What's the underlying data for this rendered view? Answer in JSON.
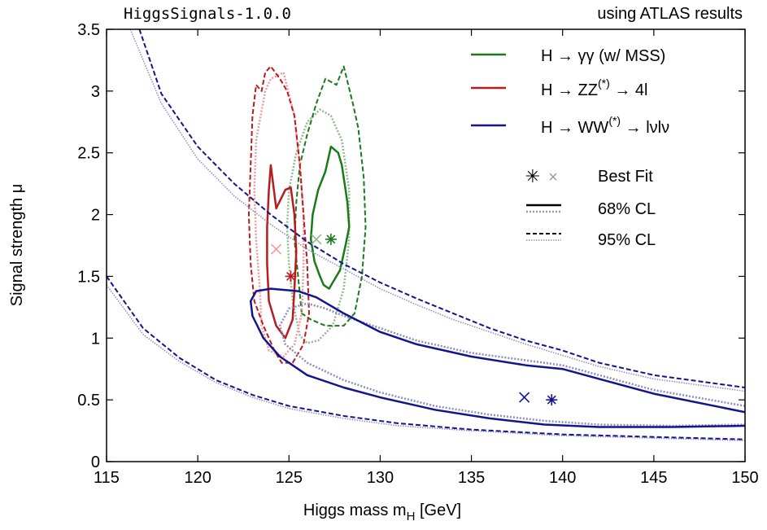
{
  "header": {
    "program": "HiggsSignals-1.0.0",
    "source": "using ATLAS results"
  },
  "colors": {
    "gamma": "#1a7a1a",
    "zz": "#b81c1c",
    "ww": "#14148c",
    "gamma_light": "#8fb88f",
    "zz_light": "#f09a9a",
    "ww_light": "#8c8cc4",
    "grey": "#999999"
  },
  "chart_data": {
    "type": "scatter",
    "title": "",
    "xlabel": "Higgs mass m_H [GeV]",
    "xlabel_main": "Higgs mass m",
    "xlabel_sub": "H",
    "xlabel_unit": " [GeV]",
    "ylabel": "Signal strength μ",
    "xlim": [
      115,
      150
    ],
    "ylim": [
      0,
      3.5
    ],
    "xticks": [
      115,
      120,
      125,
      130,
      135,
      140,
      145,
      150
    ],
    "yticks": [
      0,
      0.5,
      1,
      1.5,
      2,
      2.5,
      3,
      3.5
    ],
    "xtick_labels": [
      "115",
      "120",
      "125",
      "130",
      "135",
      "140",
      "145",
      "150"
    ],
    "ytick_labels": [
      "0",
      "0.5",
      "1",
      "1.5",
      "2",
      "2.5",
      "3",
      "3.5"
    ],
    "grid": false,
    "legend_position": "top-right",
    "legend": {
      "channels": [
        {
          "key": "gamma",
          "pre": "H → γγ (w/ MSS)",
          "sup": "",
          "post": ""
        },
        {
          "key": "zz",
          "pre": "H → ZZ",
          "sup": "(*)",
          "post": " → 4l"
        },
        {
          "key": "ww",
          "pre": "H → WW",
          "sup": "(*)",
          "post": " → lνlν"
        }
      ],
      "best_fit": "Best Fit",
      "cl68": "68% CL",
      "cl95": "95% CL"
    },
    "series": [
      {
        "channel": "gamma",
        "best_fit_higgssignals": [
          127.3,
          1.8
        ],
        "best_fit_official": [
          126.5,
          1.8
        ],
        "cl68_higgssignals": [
          [
            126.7,
            1.5
          ],
          [
            126.4,
            1.62
          ],
          [
            126.2,
            1.8
          ],
          [
            126.3,
            2.0
          ],
          [
            126.6,
            2.2
          ],
          [
            127.0,
            2.35
          ],
          [
            127.3,
            2.55
          ],
          [
            127.7,
            2.5
          ],
          [
            127.9,
            2.4
          ],
          [
            128.2,
            2.1
          ],
          [
            128.3,
            1.9
          ],
          [
            128.1,
            1.75
          ],
          [
            127.8,
            1.55
          ],
          [
            127.2,
            1.4
          ],
          [
            126.9,
            1.43
          ]
        ],
        "cl68_official": [
          [
            125.6,
            1.02
          ],
          [
            125.2,
            1.3
          ],
          [
            125.0,
            1.6
          ],
          [
            124.9,
            1.9
          ],
          [
            125.0,
            2.2
          ],
          [
            125.4,
            2.5
          ],
          [
            126.0,
            2.75
          ],
          [
            126.7,
            2.85
          ],
          [
            127.3,
            2.8
          ],
          [
            127.9,
            2.6
          ],
          [
            128.3,
            2.2
          ],
          [
            128.3,
            1.8
          ],
          [
            128.0,
            1.4
          ],
          [
            127.4,
            1.1
          ],
          [
            126.6,
            0.98
          ],
          [
            126.0,
            0.96
          ]
        ],
        "cl95_higgssignals": [
          [
            125.7,
            1.2
          ],
          [
            125.5,
            1.5
          ],
          [
            125.3,
            1.8
          ],
          [
            125.4,
            2.1
          ],
          [
            125.6,
            2.4
          ],
          [
            126.0,
            2.65
          ],
          [
            126.5,
            2.9
          ],
          [
            127.0,
            3.1
          ],
          [
            127.6,
            3.05
          ],
          [
            128.0,
            3.2
          ],
          [
            128.5,
            2.9
          ],
          [
            128.8,
            2.7
          ],
          [
            129.1,
            2.3
          ],
          [
            129.2,
            1.9
          ],
          [
            129.0,
            1.5
          ],
          [
            128.6,
            1.2
          ],
          [
            128.0,
            1.1
          ],
          [
            127.0,
            1.1
          ],
          [
            126.2,
            1.15
          ]
        ],
        "cl95_official": []
      },
      {
        "channel": "zz",
        "best_fit_higgssignals": [
          125.1,
          1.5
        ],
        "best_fit_official": [
          124.3,
          1.72
        ],
        "cl68_higgssignals": [
          [
            124.0,
            2.4
          ],
          [
            124.3,
            2.05
          ],
          [
            124.8,
            2.2
          ],
          [
            125.1,
            2.22
          ],
          [
            125.3,
            2.0
          ],
          [
            125.4,
            1.7
          ],
          [
            125.3,
            1.4
          ],
          [
            125.2,
            1.15
          ],
          [
            124.8,
            1.0
          ],
          [
            124.3,
            1.1
          ],
          [
            123.9,
            1.3
          ],
          [
            123.8,
            1.6
          ],
          [
            123.8,
            1.9
          ],
          [
            123.9,
            2.2
          ]
        ],
        "cl68_official": [
          [
            123.7,
            3.0
          ],
          [
            123.2,
            2.6
          ],
          [
            123.1,
            2.2
          ],
          [
            123.2,
            1.8
          ],
          [
            123.4,
            1.4
          ],
          [
            123.5,
            1.1
          ],
          [
            123.9,
            0.9
          ],
          [
            124.7,
            0.85
          ],
          [
            125.3,
            0.95
          ],
          [
            125.7,
            1.2
          ],
          [
            125.8,
            1.6
          ],
          [
            125.8,
            2.0
          ],
          [
            125.6,
            2.4
          ],
          [
            125.3,
            2.8
          ],
          [
            124.7,
            3.15
          ],
          [
            124.0,
            3.1
          ]
        ],
        "cl95_higgssignals": [
          [
            122.9,
            2.4
          ],
          [
            123.0,
            2.8
          ],
          [
            123.2,
            3.05
          ],
          [
            123.5,
            3.0
          ],
          [
            123.7,
            3.15
          ],
          [
            124.0,
            3.2
          ],
          [
            124.5,
            3.1
          ],
          [
            124.9,
            3.0
          ],
          [
            125.3,
            2.8
          ],
          [
            125.6,
            2.4
          ],
          [
            125.8,
            2.0
          ],
          [
            126.0,
            1.6
          ],
          [
            126.1,
            1.2
          ],
          [
            125.8,
            0.95
          ],
          [
            125.2,
            0.8
          ],
          [
            124.6,
            0.8
          ],
          [
            124.2,
            0.9
          ],
          [
            123.6,
            1.1
          ],
          [
            123.1,
            1.3
          ],
          [
            122.9,
            1.6
          ],
          [
            122.8,
            2.0
          ]
        ],
        "cl95_official": []
      },
      {
        "channel": "ww",
        "best_fit_higgssignals": [
          139.4,
          0.5
        ],
        "best_fit_official": [
          137.9,
          0.52
        ],
        "cl68_higgssignals": [
          [
            150,
            0.4
          ],
          [
            145,
            0.55
          ],
          [
            142,
            0.67
          ],
          [
            140,
            0.75
          ],
          [
            138,
            0.78
          ],
          [
            135,
            0.85
          ],
          [
            132,
            0.95
          ],
          [
            130,
            1.05
          ],
          [
            128,
            1.2
          ],
          [
            126.5,
            1.33
          ],
          [
            125.5,
            1.38
          ],
          [
            124,
            1.4
          ],
          [
            123.2,
            1.38
          ],
          [
            122.9,
            1.3
          ],
          [
            123.0,
            1.18
          ],
          [
            123.6,
            1.0
          ],
          [
            124.5,
            0.85
          ],
          [
            126,
            0.7
          ],
          [
            128,
            0.6
          ],
          [
            130,
            0.52
          ],
          [
            133,
            0.42
          ],
          [
            136,
            0.35
          ],
          [
            139,
            0.3
          ],
          [
            142,
            0.28
          ],
          [
            146,
            0.28
          ],
          [
            150,
            0.29
          ]
        ],
        "cl68_official": [
          [
            150,
            0.45
          ],
          [
            145,
            0.58
          ],
          [
            142,
            0.7
          ],
          [
            140,
            0.78
          ],
          [
            138,
            0.82
          ],
          [
            135,
            0.88
          ],
          [
            132,
            0.98
          ],
          [
            130,
            1.08
          ],
          [
            128,
            1.18
          ],
          [
            127,
            1.24
          ],
          [
            126,
            1.28
          ],
          [
            125,
            1.24
          ],
          [
            124.5,
            1.1
          ],
          [
            124.8,
            0.95
          ],
          [
            126,
            0.8
          ],
          [
            128,
            0.66
          ],
          [
            130,
            0.56
          ],
          [
            133,
            0.45
          ],
          [
            136,
            0.38
          ],
          [
            139,
            0.33
          ],
          [
            142,
            0.3
          ],
          [
            146,
            0.29
          ],
          [
            150,
            0.3
          ]
        ],
        "cl95_higgssignals_upper": [
          [
            116.8,
            3.5
          ],
          [
            118,
            2.98
          ],
          [
            120,
            2.55
          ],
          [
            122,
            2.25
          ],
          [
            124,
            2.0
          ],
          [
            126,
            1.78
          ],
          [
            128,
            1.6
          ],
          [
            130,
            1.45
          ],
          [
            132,
            1.32
          ],
          [
            134,
            1.2
          ],
          [
            136,
            1.08
          ],
          [
            138,
            0.98
          ],
          [
            140,
            0.9
          ],
          [
            142,
            0.8
          ],
          [
            145,
            0.7
          ],
          [
            150,
            0.6
          ]
        ],
        "cl95_higgssignals_lower": [
          [
            115,
            1.5
          ],
          [
            117,
            1.08
          ],
          [
            119,
            0.84
          ],
          [
            121,
            0.66
          ],
          [
            123,
            0.54
          ],
          [
            125,
            0.45
          ],
          [
            128,
            0.37
          ],
          [
            131,
            0.31
          ],
          [
            135,
            0.26
          ],
          [
            140,
            0.22
          ],
          [
            145,
            0.2
          ],
          [
            150,
            0.18
          ]
        ],
        "cl95_official_upper": [
          [
            116.3,
            3.5
          ],
          [
            118,
            2.9
          ],
          [
            120,
            2.45
          ],
          [
            122,
            2.15
          ],
          [
            124,
            1.92
          ],
          [
            126,
            1.72
          ],
          [
            128,
            1.56
          ],
          [
            130,
            1.4
          ],
          [
            132,
            1.27
          ],
          [
            134,
            1.15
          ],
          [
            136,
            1.05
          ],
          [
            138,
            0.95
          ],
          [
            140,
            0.86
          ],
          [
            142,
            0.77
          ],
          [
            145,
            0.67
          ],
          [
            150,
            0.57
          ]
        ],
        "cl95_official_lower": [
          [
            115,
            1.43
          ],
          [
            117,
            1.03
          ],
          [
            119,
            0.81
          ],
          [
            121,
            0.64
          ],
          [
            123,
            0.52
          ],
          [
            125,
            0.43
          ],
          [
            128,
            0.35
          ],
          [
            131,
            0.29
          ],
          [
            135,
            0.25
          ],
          [
            140,
            0.21
          ],
          [
            145,
            0.19
          ],
          [
            150,
            0.17
          ]
        ]
      }
    ]
  }
}
